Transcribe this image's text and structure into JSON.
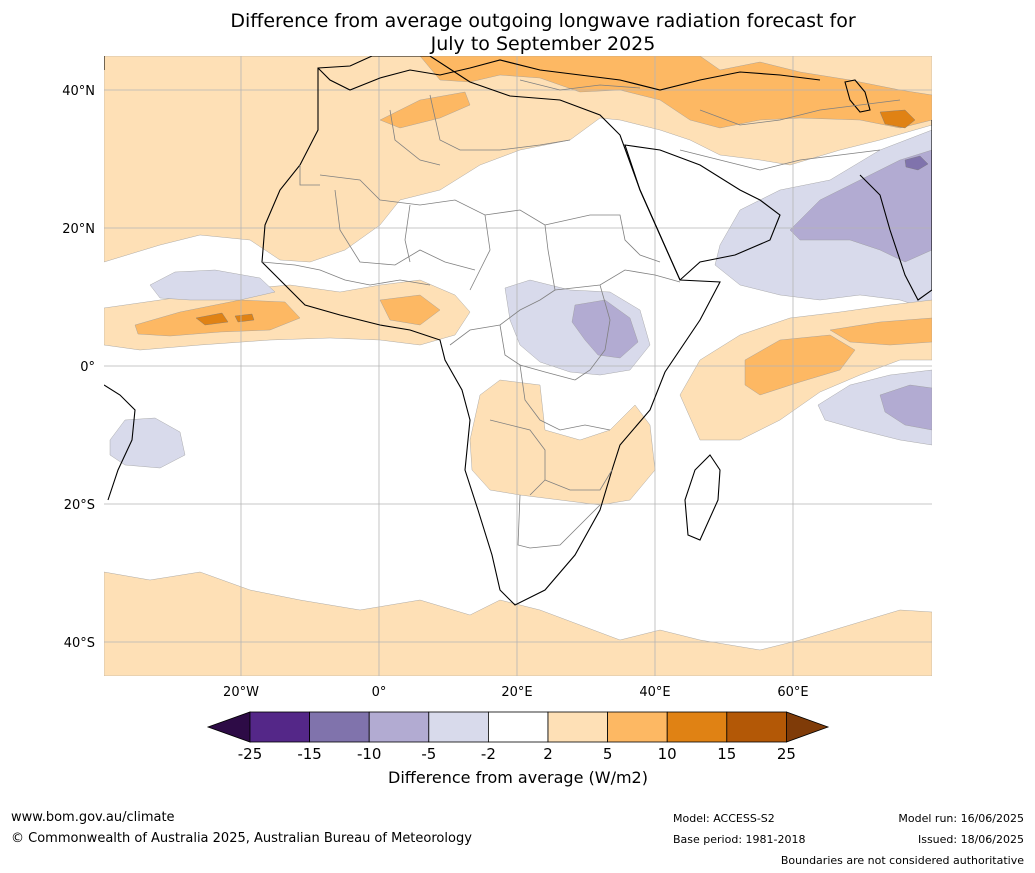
{
  "title_line1": "Difference from average outgoing longwave radiation forecast for",
  "title_line2": "July to September 2025",
  "axes": {
    "lat_ticks": [
      "40°N",
      "20°N",
      "0°",
      "20°S",
      "40°S"
    ],
    "lon_ticks": [
      "20°W",
      "0°",
      "20°E",
      "40°E",
      "60°E"
    ]
  },
  "legend": {
    "title": "Difference from average (W/m2)",
    "tick_labels": [
      "-25",
      "-15",
      "-10",
      "-5",
      "-2",
      "2",
      "5",
      "10",
      "15",
      "25"
    ],
    "colors": {
      "below_-25": "#2d0b46",
      "-25_-15": "#542788",
      "-15_-10": "#8073ac",
      "-10_-5": "#b2abd2",
      "-5_-2": "#d8daeb",
      "-2_2": "#ffffff",
      "2_5": "#fee0b6",
      "5_10": "#fdb863",
      "10_15": "#e08214",
      "15_25": "#b35806",
      "above_25": "#7f3b08"
    }
  },
  "footer": {
    "url": "www.bom.gov.au/climate",
    "copyright": "© Commonwealth of Australia 2025, Australian Bureau of Meteorology",
    "model": "Model: ACCESS-S2",
    "base_period": "Base period: 1981-2018",
    "model_run": "Model run: 16/06/2025",
    "issued": "Issued: 18/06/2025",
    "disclaimer": "Boundaries are not considered authoritative"
  }
}
